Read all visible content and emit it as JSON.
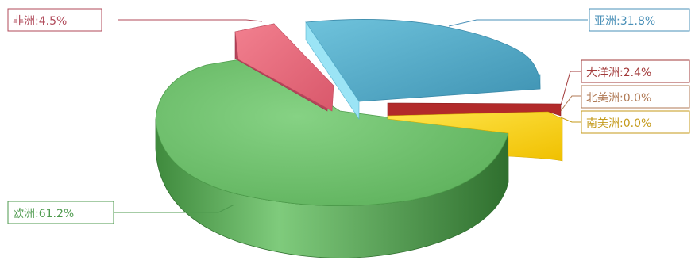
{
  "chart_data": {
    "type": "pie",
    "style": "3d-exploded",
    "categories": [
      "亚洲",
      "大洋洲",
      "北美洲",
      "南美洲",
      "欧洲",
      "非洲"
    ],
    "labels": [
      "亚洲:31.8%",
      "大洋洲:2.4%",
      "北美洲:0.0%",
      "南美洲:0.0%",
      "欧洲:61.2%",
      "非洲:4.5%"
    ],
    "values": [
      31.8,
      2.4,
      0.0,
      0.0,
      61.2,
      4.5
    ],
    "colors": [
      "#5ab6d2",
      "#c0392b",
      "#d9d9d9",
      "#f7d21e",
      "#6cbf6a",
      "#e8697a"
    ],
    "label_colors": [
      "#4a90b8",
      "#a23a3a",
      "#b07a55",
      "#c49a1a",
      "#4e9a4e",
      "#b04a5a"
    ]
  }
}
